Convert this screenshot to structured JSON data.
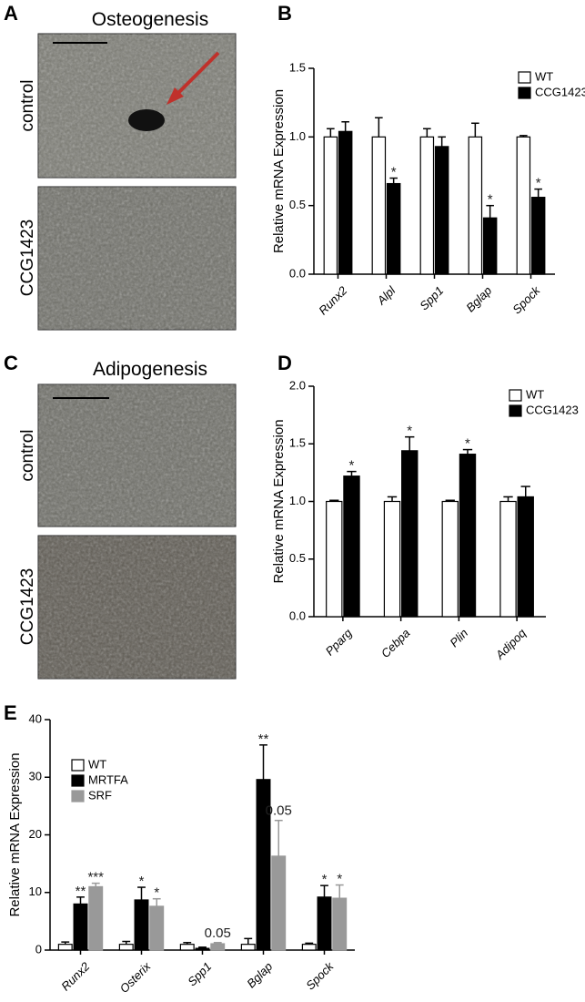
{
  "panel_letters": [
    "A",
    "B",
    "C",
    "D",
    "E"
  ],
  "image_panels": [
    {
      "title": "Osteogenesis",
      "rows": [
        "control",
        "CCG1423"
      ]
    },
    {
      "title": "Adipogenesis",
      "rows": [
        "control",
        "CCG1423"
      ]
    }
  ],
  "chart_data": [
    {
      "type": "bar",
      "ylabel": "Relative mRNA Expression",
      "categories": [
        "Runx2",
        "Alpl",
        "Spp1",
        "Bglap",
        "Spock"
      ],
      "series": [
        {
          "name": "WT",
          "color": "#ffffff",
          "values": [
            1.0,
            1.0,
            1.0,
            1.0,
            1.0
          ],
          "errors": [
            0.06,
            0.14,
            0.06,
            0.1,
            0.01
          ]
        },
        {
          "name": "CCG1423",
          "color": "#000000",
          "values": [
            1.04,
            0.66,
            0.93,
            0.41,
            0.56
          ],
          "errors": [
            0.07,
            0.04,
            0.07,
            0.09,
            0.06
          ],
          "marks": [
            null,
            "*",
            null,
            "*",
            "*"
          ]
        }
      ],
      "ylim": [
        0,
        1.5
      ],
      "yticks": [
        {
          "value": 0,
          "label": "0.0"
        },
        {
          "value": 0.5,
          "label": "0.5"
        },
        {
          "value": 1,
          "label": "1.0"
        },
        {
          "value": 1.5,
          "label": "1.5"
        }
      ],
      "legend": "top-right"
    },
    {
      "type": "bar",
      "ylabel": "Relative mRNA Expression",
      "categories": [
        "Pparg",
        "Cebpa",
        "Plin",
        "Adipoq"
      ],
      "series": [
        {
          "name": "WT",
          "color": "#ffffff",
          "values": [
            1.0,
            1.0,
            1.0,
            1.0
          ],
          "errors": [
            0.01,
            0.04,
            0.01,
            0.04
          ]
        },
        {
          "name": "CCG1423",
          "color": "#000000",
          "values": [
            1.22,
            1.44,
            1.41,
            1.04
          ],
          "errors": [
            0.04,
            0.12,
            0.04,
            0.09
          ],
          "marks": [
            "*",
            "*",
            "*",
            null
          ]
        }
      ],
      "ylim": [
        0,
        2
      ],
      "yticks": [
        {
          "value": 0,
          "label": "0.0"
        },
        {
          "value": 0.5,
          "label": "0.5"
        },
        {
          "value": 1,
          "label": "1.0"
        },
        {
          "value": 1.5,
          "label": "1.5"
        },
        {
          "value": 2,
          "label": "2.0"
        }
      ],
      "legend": "top-right"
    },
    {
      "type": "bar",
      "ylabel": "Relative mRNA Expression",
      "categories": [
        "Runx2",
        "Osterix",
        "Spp1",
        "Bglap",
        "Spock"
      ],
      "series": [
        {
          "name": "WT",
          "color": "#ffffff",
          "values": [
            1.0,
            1.0,
            1.0,
            1.0,
            1.0
          ],
          "errors": [
            0.4,
            0.5,
            0.3,
            1.0,
            0.2
          ]
        },
        {
          "name": "MRTFA",
          "color": "#000000",
          "values": [
            8,
            8.7,
            0.3,
            29.6,
            9.2
          ],
          "errors": [
            1.2,
            2.2,
            0.2,
            6,
            2
          ],
          "marks": [
            "**",
            "*",
            null,
            "**",
            "*"
          ]
        },
        {
          "name": "SRF",
          "color": "#999999",
          "values": [
            11,
            7.6,
            1.1,
            16.3,
            9.0
          ],
          "errors": [
            0.6,
            1.3,
            0.2,
            6.2,
            2.3
          ],
          "marks": [
            "***",
            "*",
            "0.05",
            "0.05",
            "*"
          ]
        }
      ],
      "ylim": [
        0,
        40
      ],
      "yticks": [
        0,
        10,
        20,
        30,
        40
      ],
      "legend": "top-left"
    }
  ]
}
